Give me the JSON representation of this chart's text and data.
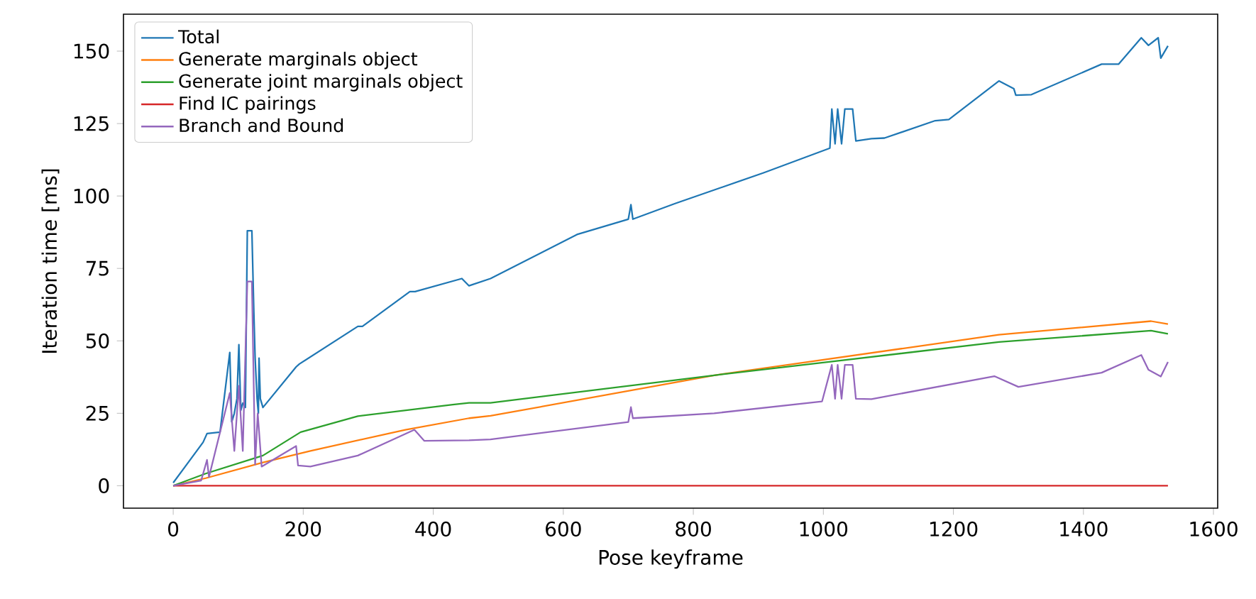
{
  "chart_data": {
    "type": "line",
    "xlabel": "Pose keyframe",
    "ylabel": "Iteration time [ms]",
    "xlim": [
      -76.5,
      1606.5
    ],
    "ylim": [
      -7.75,
      162.75
    ],
    "xticks": [
      0,
      200,
      400,
      600,
      800,
      1000,
      1200,
      1400,
      1600
    ],
    "yticks": [
      0,
      25,
      50,
      75,
      100,
      125,
      150
    ],
    "legend": "top left",
    "series": [
      {
        "name": "Total",
        "color": "#1f77b4",
        "x": [
          0,
          46,
          52,
          72,
          87,
          90,
          94,
          98,
          101,
          104,
          107,
          111,
          114,
          121,
          124,
          126,
          129,
          131,
          132,
          134,
          138,
          189,
          194,
          284,
          291,
          364,
          372,
          444,
          455,
          488,
          621,
          700,
          704,
          707,
          772,
          908,
          1010,
          1013,
          1018,
          1022,
          1028,
          1033,
          1045,
          1050,
          1074,
          1094,
          1172,
          1193,
          1270,
          1293,
          1296,
          1320,
          1428,
          1454,
          1489,
          1500,
          1515,
          1519,
          1530
        ],
        "values": [
          1,
          15,
          18,
          18.5,
          46,
          22,
          25,
          30,
          48.7,
          26,
          28.5,
          27,
          88,
          88,
          60,
          44,
          30,
          25,
          44,
          30,
          27,
          41,
          42,
          55,
          55,
          67,
          67,
          71.5,
          69,
          71.5,
          86.7,
          92,
          97,
          92,
          97.4,
          108,
          116.5,
          130,
          118,
          130,
          118,
          130,
          130,
          119,
          119.8,
          120,
          126,
          126.4,
          139.7,
          137,
          134.8,
          135,
          145.5,
          145.5,
          154.6,
          152,
          154.6,
          147.6,
          151.8
        ]
      },
      {
        "name": "Generate marginals object",
        "color": "#ff7f0e",
        "x": [
          0,
          50,
          138,
          211,
          357,
          455,
          488,
          832,
          1270,
          1504,
          1530
        ],
        "values": [
          0,
          2.6,
          8,
          12,
          19.3,
          23.3,
          24.1,
          38.1,
          52.1,
          56.8,
          55.8
        ]
      },
      {
        "name": "Generate joint marginals object",
        "color": "#2ca02c",
        "x": [
          0,
          50,
          138,
          196,
          284,
          430,
          455,
          488,
          832,
          1270,
          1504,
          1530
        ],
        "values": [
          0,
          4.2,
          10.4,
          18.5,
          24,
          28,
          28.6,
          28.6,
          38.1,
          49.6,
          53.5,
          52.4
        ]
      },
      {
        "name": "Find IC pairings",
        "color": "#d62728",
        "x": [
          0,
          1530
        ],
        "values": [
          0,
          0
        ]
      },
      {
        "name": "Branch and Bound",
        "color": "#9467bd",
        "x": [
          0,
          43,
          52,
          55,
          87,
          94,
          101,
          107,
          114,
          121,
          126,
          130,
          136,
          189,
          192,
          211,
          284,
          371,
          386,
          455,
          488,
          700,
          704,
          707,
          832,
          998,
          1013,
          1018,
          1022,
          1028,
          1033,
          1045,
          1050,
          1074,
          1263,
          1300,
          1428,
          1489,
          1500,
          1519,
          1530
        ],
        "values": [
          0,
          1.8,
          8.9,
          3,
          32,
          12,
          34.5,
          12,
          70.5,
          70.5,
          7.3,
          25,
          6.6,
          13.7,
          7,
          6.6,
          10.4,
          19.3,
          15.5,
          15.7,
          16,
          22,
          27.1,
          23.3,
          25,
          29.1,
          41.7,
          30,
          41.7,
          30,
          41.7,
          41.7,
          30,
          29.9,
          37.8,
          34.1,
          39,
          45.1,
          40,
          37.7,
          42.7
        ]
      }
    ]
  }
}
